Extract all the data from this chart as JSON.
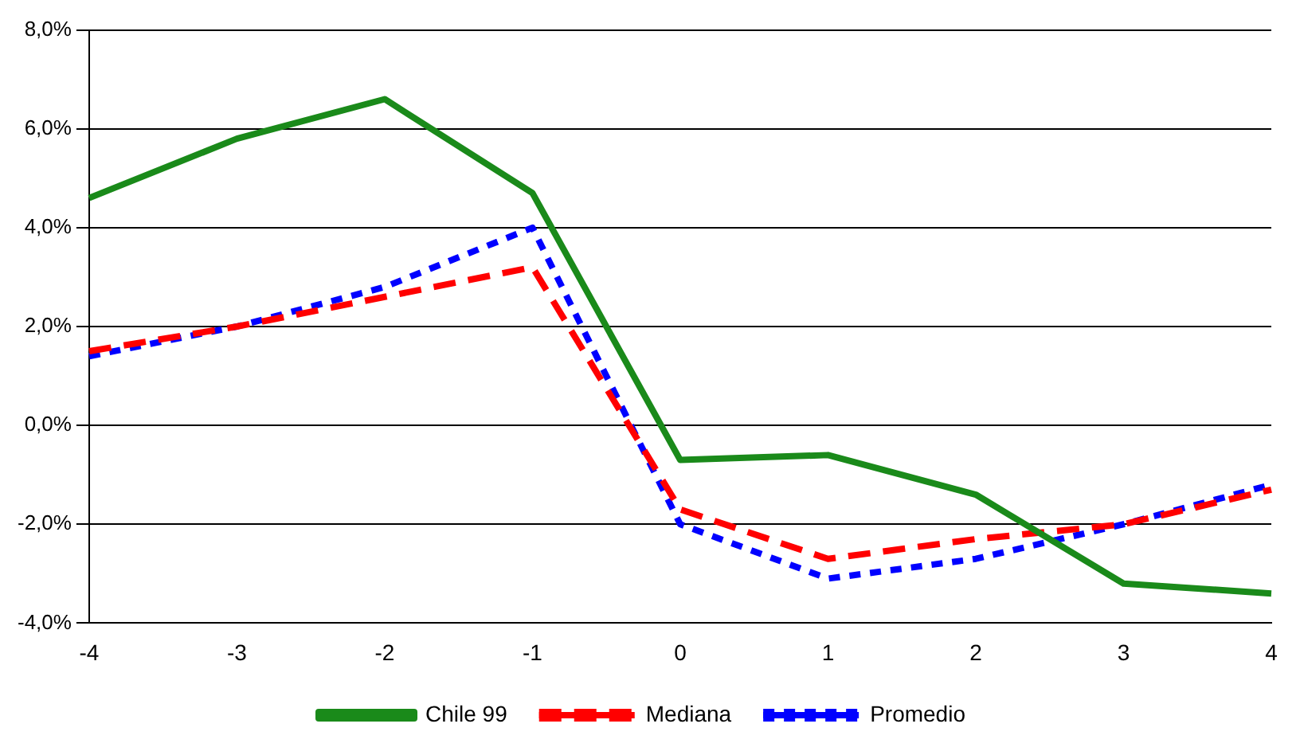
{
  "chart_data": {
    "type": "line",
    "categories": [
      "-4",
      "-3",
      "-2",
      "-1",
      "0",
      "1",
      "2",
      "3",
      "4"
    ],
    "series": [
      {
        "name": "Chile 99",
        "color": "#1a8a1a",
        "line_style": "solid",
        "values": [
          4.6,
          5.8,
          6.6,
          4.7,
          -0.7,
          -0.6,
          -1.4,
          -3.2,
          -3.4
        ]
      },
      {
        "name": "Mediana",
        "color": "#ff0000",
        "line_style": "dashed",
        "values": [
          1.5,
          2.0,
          2.6,
          3.2,
          -1.7,
          -2.7,
          -2.3,
          -2.0,
          -1.3
        ]
      },
      {
        "name": "Promedio",
        "color": "#0000ff",
        "line_style": "dotted",
        "values": [
          1.4,
          2.0,
          2.8,
          4.0,
          -2.0,
          -3.1,
          -2.7,
          -2.0,
          -1.2
        ]
      }
    ],
    "ylim": [
      -4,
      8
    ],
    "yticks": [
      {
        "value": -4,
        "label": "-4,0%"
      },
      {
        "value": -2,
        "label": "-2,0%"
      },
      {
        "value": 0,
        "label": "0,0%"
      },
      {
        "value": 2,
        "label": "2,0%"
      },
      {
        "value": 4,
        "label": "4,0%"
      },
      {
        "value": 6,
        "label": "6,0%"
      },
      {
        "value": 8,
        "label": "8,0%"
      }
    ],
    "grid": "y",
    "legend": "bottom",
    "marker": "none"
  }
}
